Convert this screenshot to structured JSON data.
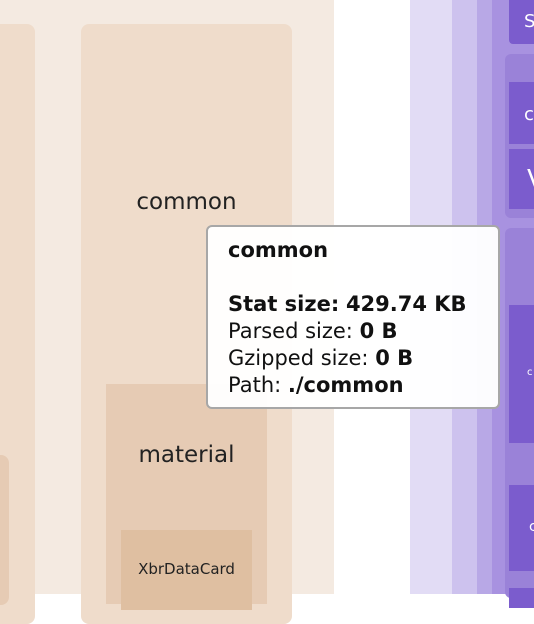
{
  "treemap": {
    "common_label": "common",
    "material_label": "material",
    "xbr_label": "XbrDataCard",
    "right_labels": [
      "S",
      "c",
      "V",
      "c",
      "c"
    ]
  },
  "tooltip": {
    "title": "common",
    "stat_label": "Stat size:",
    "stat_value": "429.74 KB",
    "parsed_label": "Parsed size:",
    "parsed_value": "0 B",
    "gzip_label": "Gzipped size:",
    "gzip_value": "0 B",
    "path_label": "Path:",
    "path_value": "./common"
  },
  "colors": {
    "outer": "#f4eae1",
    "inner": "#efdccb",
    "material": "#e6cbb4",
    "xbr": "#dfbfa1",
    "purple_light": "#e2dcf5",
    "purple_mid": "#c7bbeb",
    "purple_dark": "#7b5ccd"
  }
}
